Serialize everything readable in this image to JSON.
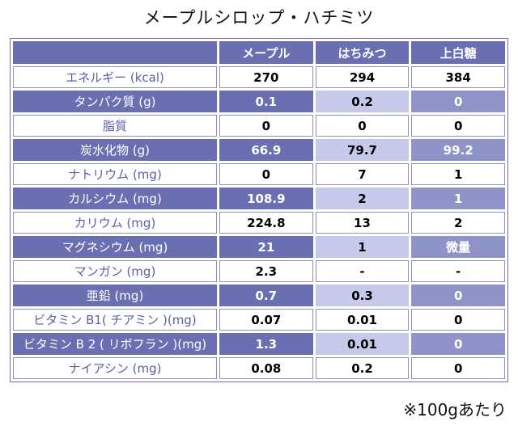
{
  "title": "メープルシロップ・ハチミツ",
  "table": {
    "headers": [
      "",
      "メープル",
      "はちみつ",
      "上白糖"
    ],
    "rows": [
      {
        "label": "エネルギー (kcal)",
        "values": [
          "270",
          "294",
          "384"
        ],
        "shaded": false
      },
      {
        "label": "タンパク質 (g)",
        "values": [
          "0.1",
          "0.2",
          "0"
        ],
        "shaded": true
      },
      {
        "label": "脂質",
        "values": [
          "0",
          "0",
          "0"
        ],
        "shaded": false
      },
      {
        "label": "炭水化物 (g)",
        "values": [
          "66.9",
          "79.7",
          "99.2"
        ],
        "shaded": true
      },
      {
        "label": "ナトリウム (mg)",
        "values": [
          "0",
          "7",
          "1"
        ],
        "shaded": false
      },
      {
        "label": "カルシウム (mg)",
        "values": [
          "108.9",
          "2",
          "1"
        ],
        "shaded": true
      },
      {
        "label": "カリウム (mg)",
        "values": [
          "224.8",
          "13",
          "2"
        ],
        "shaded": false
      },
      {
        "label": "マグネシウム (mg)",
        "values": [
          "21",
          "1",
          "微量"
        ],
        "shaded": true
      },
      {
        "label": "マンガン (mg)",
        "values": [
          "2.3",
          "-",
          "-"
        ],
        "shaded": false
      },
      {
        "label": "亜鉛 (mg)",
        "values": [
          "0.7",
          "0.3",
          "0"
        ],
        "shaded": true
      },
      {
        "label": "ビタミン B1( チアミン )(mg)",
        "values": [
          "0.07",
          "0.01",
          "0"
        ],
        "shaded": false
      },
      {
        "label": "ビタミン B 2 ( リボフラン )(mg)",
        "values": [
          "1.3",
          "0.01",
          "0"
        ],
        "shaded": true
      },
      {
        "label": "ナイアシン (mg)",
        "values": [
          "0.08",
          "0.2",
          "0"
        ],
        "shaded": false
      }
    ]
  },
  "note": "※100gあたり",
  "colors": {
    "header": "#6a6fb2",
    "shade_mid": "#c7c9ea",
    "shade_light": "#8e93c8",
    "label_text": "#5a5fa8"
  }
}
